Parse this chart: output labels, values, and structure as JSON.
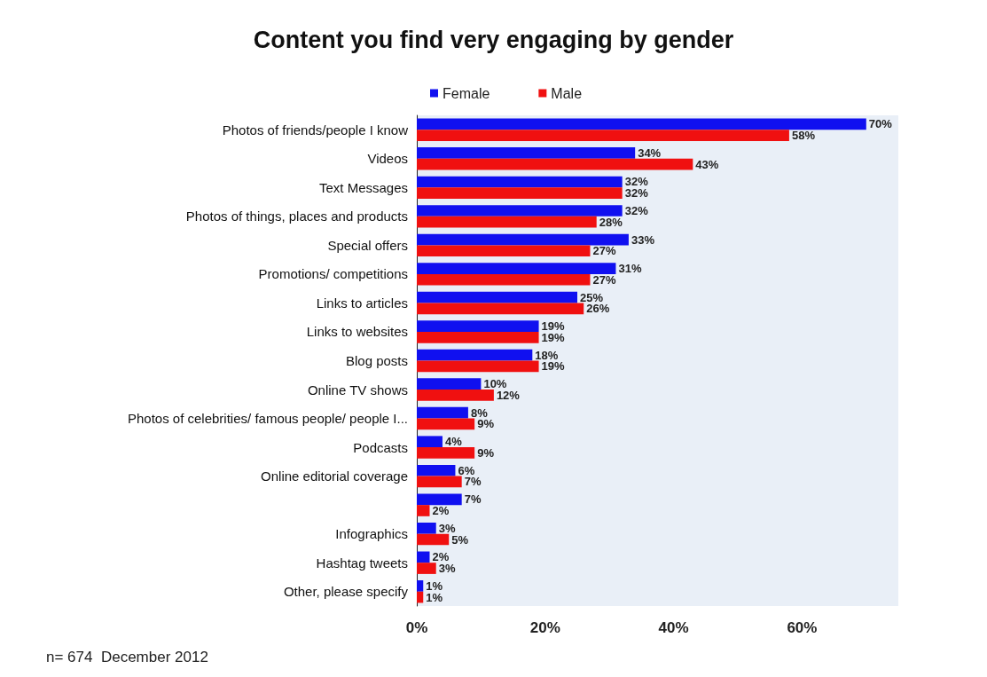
{
  "chart_data": {
    "type": "bar",
    "orientation": "horizontal",
    "title": "Content you find very engaging by gender",
    "categories": [
      "Photos of friends/people I know",
      "Videos",
      "Text Messages",
      "Photos of things, places and products",
      "Special offers",
      "Promotions/ competitions",
      "Links to articles",
      "Links to websites",
      "Blog posts",
      "Online TV shows",
      "Photos of celebrities/ famous people/ people I...",
      "Podcasts",
      "Online editorial coverage",
      null,
      "Infographics",
      "Hashtag tweets",
      "Other, please specify"
    ],
    "series": [
      {
        "name": "Female",
        "color": "#1010f0",
        "values": [
          70,
          34,
          32,
          32,
          33,
          31,
          25,
          19,
          18,
          10,
          8,
          4,
          6,
          7,
          3,
          2,
          1
        ],
        "value_labels": [
          "70%",
          "34%",
          "32%",
          "32%",
          "33%",
          "31%",
          "25%",
          "19%",
          "18%",
          "10%",
          "8%",
          "4%",
          "6%",
          "7%",
          "3%",
          "2%",
          "1%"
        ]
      },
      {
        "name": "Male",
        "color": "#f01010",
        "values": [
          58,
          43,
          32,
          28,
          27,
          27,
          26,
          19,
          19,
          12,
          9,
          9,
          7,
          2,
          5,
          3,
          1
        ],
        "value_labels": [
          "58%",
          "43%",
          "32%",
          "28%",
          "27%",
          "27%",
          "26%",
          "19%",
          "19%",
          "12%",
          "9%",
          "9%",
          "7%",
          "2%",
          "5%",
          "3%",
          "1%"
        ]
      }
    ],
    "xlim": [
      0,
      75
    ],
    "xticks": [
      {
        "value": 0,
        "label": "0%"
      },
      {
        "value": 20,
        "label": "20%"
      },
      {
        "value": 40,
        "label": "40%"
      },
      {
        "value": 60,
        "label": "60%"
      }
    ],
    "grid": false,
    "legend": "top",
    "annotations": [
      "n= 674  December 2012"
    ]
  }
}
